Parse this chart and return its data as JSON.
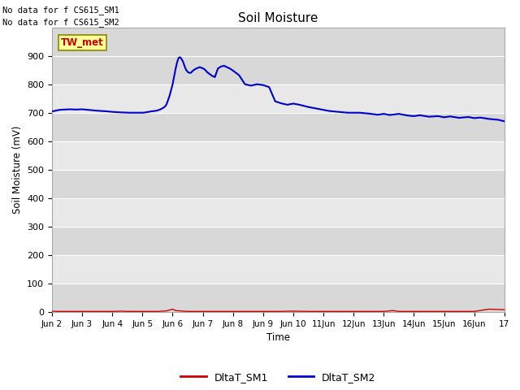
{
  "title": "Soil Moisture",
  "ylabel": "Soil Moisture (mV)",
  "xlabel": "Time",
  "no_data_text_1": "No data for f CS615_SM1",
  "no_data_text_2": "No data for f CS615_SM2",
  "annotation_text": "TW_met",
  "annotation_box_color": "#FFFF99",
  "annotation_text_color": "#CC0000",
  "annotation_box_edge_color": "#888800",
  "ylim": [
    0,
    1000
  ],
  "yticks": [
    0,
    100,
    200,
    300,
    400,
    500,
    600,
    700,
    800,
    900
  ],
  "band_colors": [
    "#D8D8D8",
    "#E8E8E8"
  ],
  "xlim_start": 0,
  "xlim_end": 15,
  "xtick_labels": [
    "Jun 2",
    "Jun 3",
    "Jun 4",
    "Jun 5",
    "Jun 6",
    "Jun 7",
    "Jun 8",
    "Jun 9",
    "Jun 10",
    "11Jun",
    "12Jun",
    "13Jun",
    "14Jun",
    "15Jun",
    "16Jun",
    "17"
  ],
  "fig_bg_color": "#FFFFFF",
  "line_sm1_color": "#CC0000",
  "line_sm2_color": "#0000CC",
  "legend_sm1": "DltaT_SM1",
  "legend_sm2": "DltaT_SM2",
  "sm1_x": [
    0,
    0.2,
    0.5,
    1.0,
    1.5,
    2.0,
    2.3,
    2.5,
    3.0,
    3.5,
    3.8,
    4.0,
    4.1,
    4.5,
    5.0,
    5.5,
    6.0,
    6.5,
    7.0,
    7.5,
    8.0,
    8.5,
    9.0,
    9.5,
    10.0,
    10.5,
    11.0,
    11.3,
    11.5,
    12.0,
    12.5,
    13.0,
    13.5,
    14.0,
    14.3,
    14.5,
    15.0
  ],
  "sm1_y": [
    3,
    2,
    2,
    2,
    2,
    2,
    3,
    2,
    2,
    2,
    4,
    10,
    5,
    2,
    2,
    2,
    2,
    2,
    2,
    2,
    3,
    2,
    2,
    2,
    2,
    2,
    2,
    5,
    2,
    2,
    2,
    2,
    2,
    2,
    7,
    10,
    8
  ],
  "sm2_x": [
    0.0,
    0.08,
    0.15,
    0.25,
    0.4,
    0.6,
    0.8,
    1.0,
    1.2,
    1.5,
    1.8,
    2.0,
    2.3,
    2.6,
    2.9,
    3.0,
    3.1,
    3.2,
    3.3,
    3.4,
    3.45,
    3.5,
    3.55,
    3.6,
    3.65,
    3.7,
    3.75,
    3.8,
    3.85,
    3.9,
    3.95,
    4.0,
    4.05,
    4.1,
    4.15,
    4.2,
    4.25,
    4.3,
    4.35,
    4.4,
    4.45,
    4.5,
    4.55,
    4.6,
    4.65,
    4.7,
    4.75,
    4.8,
    4.85,
    4.9,
    4.95,
    5.0,
    5.05,
    5.1,
    5.15,
    5.2,
    5.3,
    5.4,
    5.5,
    5.6,
    5.7,
    5.8,
    5.9,
    6.0,
    6.1,
    6.2,
    6.4,
    6.6,
    6.8,
    7.0,
    7.2,
    7.4,
    7.6,
    7.8,
    8.0,
    8.2,
    8.5,
    8.8,
    9.0,
    9.2,
    9.5,
    9.8,
    10.0,
    10.2,
    10.5,
    10.8,
    11.0,
    11.2,
    11.5,
    11.8,
    12.0,
    12.2,
    12.5,
    12.8,
    13.0,
    13.2,
    13.5,
    13.8,
    14.0,
    14.2,
    14.5,
    14.8,
    15.0
  ],
  "sm2_y": [
    705,
    706,
    708,
    710,
    711,
    712,
    711,
    712,
    710,
    707,
    705,
    703,
    701,
    700,
    700,
    700,
    701,
    703,
    705,
    706,
    707,
    708,
    710,
    712,
    715,
    718,
    722,
    730,
    745,
    760,
    780,
    800,
    828,
    855,
    878,
    893,
    895,
    888,
    878,
    862,
    850,
    843,
    840,
    840,
    845,
    850,
    853,
    856,
    858,
    860,
    858,
    856,
    853,
    848,
    842,
    838,
    830,
    825,
    855,
    862,
    865,
    860,
    855,
    848,
    840,
    832,
    800,
    795,
    800,
    797,
    790,
    740,
    733,
    728,
    732,
    728,
    720,
    714,
    710,
    706,
    703,
    700,
    700,
    700,
    697,
    693,
    696,
    692,
    696,
    690,
    688,
    691,
    686,
    688,
    684,
    687,
    682,
    685,
    681,
    683,
    678,
    675,
    670
  ]
}
